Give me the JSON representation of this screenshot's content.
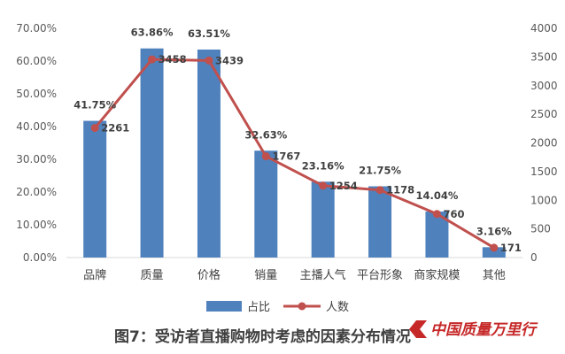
{
  "chart_data": {
    "type": "bar",
    "categories": [
      "品牌",
      "质量",
      "价格",
      "销量",
      "主播人气",
      "平台形象",
      "商家规模",
      "其他"
    ],
    "series": [
      {
        "name": "占比",
        "type": "bar",
        "axis": "left",
        "values": [
          41.75,
          63.86,
          63.51,
          32.63,
          23.16,
          21.75,
          14.04,
          3.16
        ],
        "labels": [
          "41.75%",
          "63.86%",
          "63.51%",
          "32.63%",
          "23.16%",
          "21.75%",
          "14.04%",
          "3.16%"
        ],
        "color": "#4f81bd"
      },
      {
        "name": "人数",
        "type": "line",
        "axis": "right",
        "values": [
          2261,
          3458,
          3439,
          1767,
          1254,
          1178,
          760,
          171
        ],
        "labels": [
          "2261",
          "3458",
          "3439",
          "1767",
          "1254",
          "1178",
          "760",
          "171"
        ],
        "color": "#c0504d"
      }
    ],
    "y_left": {
      "ylim": [
        0,
        70
      ],
      "ticks": [
        0,
        10,
        20,
        30,
        40,
        50,
        60,
        70
      ],
      "tick_labels": [
        "0.00%",
        "10.00%",
        "20.00%",
        "30.00%",
        "40.00%",
        "50.00%",
        "60.00%",
        "70.00%"
      ]
    },
    "y_right": {
      "ylim": [
        0,
        4000
      ],
      "ticks": [
        0,
        500,
        1000,
        1500,
        2000,
        2500,
        3000,
        3500,
        4000
      ],
      "tick_labels": [
        "0",
        "500",
        "1000",
        "1500",
        "2000",
        "2500",
        "3000",
        "3500",
        "4000"
      ]
    },
    "grid": false,
    "legend_position": "bottom-center",
    "caption": "图7：受访者直播购物时考虑的因素分布情况"
  },
  "watermark": {
    "text": "中国质量万里行"
  }
}
